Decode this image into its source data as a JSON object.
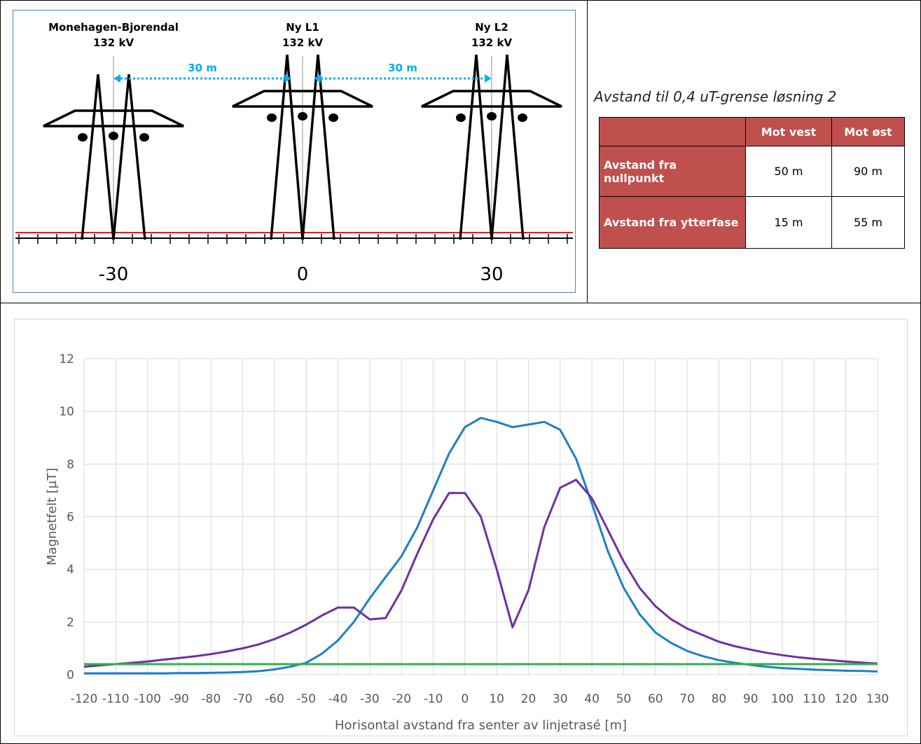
{
  "diagram": {
    "lines": [
      {
        "name": "Monehagen-Bjorendal",
        "voltage": "132 kV"
      },
      {
        "name": "Ny L1",
        "voltage": "132 kV"
      },
      {
        "name": "Ny L2",
        "voltage": "132 kV"
      }
    ],
    "spacing_labels": [
      "30 m",
      "30 m"
    ],
    "axis_labels": [
      "-30",
      "0",
      "30"
    ]
  },
  "table": {
    "title": "Avstand til 0,4 uT-grense løsning 2",
    "columns": [
      "Mot vest",
      "Mot øst"
    ],
    "rows": [
      {
        "label": "Avstand fra nullpunkt",
        "cells": [
          "50 m",
          "90 m"
        ]
      },
      {
        "label": "Avstand fra ytterfase",
        "cells": [
          "15 m",
          "55 m"
        ]
      }
    ]
  },
  "chart_data": {
    "type": "line",
    "x_label": "Horisontal avstand fra senter av linjetrasé [m]",
    "y_label": "Magnetfelt [µT]",
    "x": [
      -120,
      -115,
      -110,
      -105,
      -100,
      -95,
      -90,
      -85,
      -80,
      -75,
      -70,
      -65,
      -60,
      -55,
      -50,
      -45,
      -40,
      -35,
      -30,
      -25,
      -20,
      -15,
      -10,
      -5,
      0,
      5,
      10,
      15,
      20,
      25,
      30,
      35,
      40,
      45,
      50,
      55,
      60,
      65,
      70,
      75,
      80,
      85,
      90,
      95,
      100,
      105,
      110,
      115,
      120,
      125,
      130
    ],
    "series": [
      {
        "color": "#1f7fc4",
        "values": [
          0.05,
          0.05,
          0.05,
          0.05,
          0.05,
          0.05,
          0.06,
          0.06,
          0.07,
          0.08,
          0.1,
          0.13,
          0.2,
          0.3,
          0.45,
          0.8,
          1.3,
          2.0,
          2.9,
          3.7,
          4.5,
          5.6,
          7.0,
          8.4,
          9.4,
          9.75,
          9.6,
          9.4,
          9.5,
          9.6,
          9.3,
          8.2,
          6.5,
          4.7,
          3.3,
          2.3,
          1.6,
          1.2,
          0.9,
          0.7,
          0.55,
          0.45,
          0.37,
          0.3,
          0.25,
          0.22,
          0.19,
          0.17,
          0.15,
          0.14,
          0.12
        ]
      },
      {
        "color": "#7030a0",
        "values": [
          0.3,
          0.35,
          0.4,
          0.45,
          0.5,
          0.57,
          0.63,
          0.7,
          0.78,
          0.88,
          1.0,
          1.15,
          1.35,
          1.6,
          1.9,
          2.25,
          2.55,
          2.55,
          2.1,
          2.15,
          3.2,
          4.6,
          5.9,
          6.9,
          6.9,
          6.0,
          4.0,
          1.8,
          3.2,
          5.6,
          7.1,
          7.4,
          6.7,
          5.5,
          4.3,
          3.3,
          2.6,
          2.1,
          1.75,
          1.5,
          1.25,
          1.08,
          0.95,
          0.83,
          0.74,
          0.66,
          0.6,
          0.55,
          0.5,
          0.46,
          0.42
        ]
      },
      {
        "color": "#2db34a",
        "x": [
          -120,
          130
        ],
        "values": [
          0.4,
          0.4
        ]
      }
    ],
    "xlim": [
      -120,
      130
    ],
    "ylim": [
      0,
      12
    ],
    "xticks": [
      -120,
      -110,
      -100,
      -90,
      -80,
      -70,
      -60,
      -50,
      -40,
      -30,
      -20,
      -10,
      0,
      10,
      20,
      30,
      40,
      50,
      60,
      70,
      80,
      90,
      100,
      110,
      120,
      130
    ],
    "yticks": [
      0,
      2,
      4,
      6,
      8,
      10,
      12
    ],
    "grid": true
  }
}
